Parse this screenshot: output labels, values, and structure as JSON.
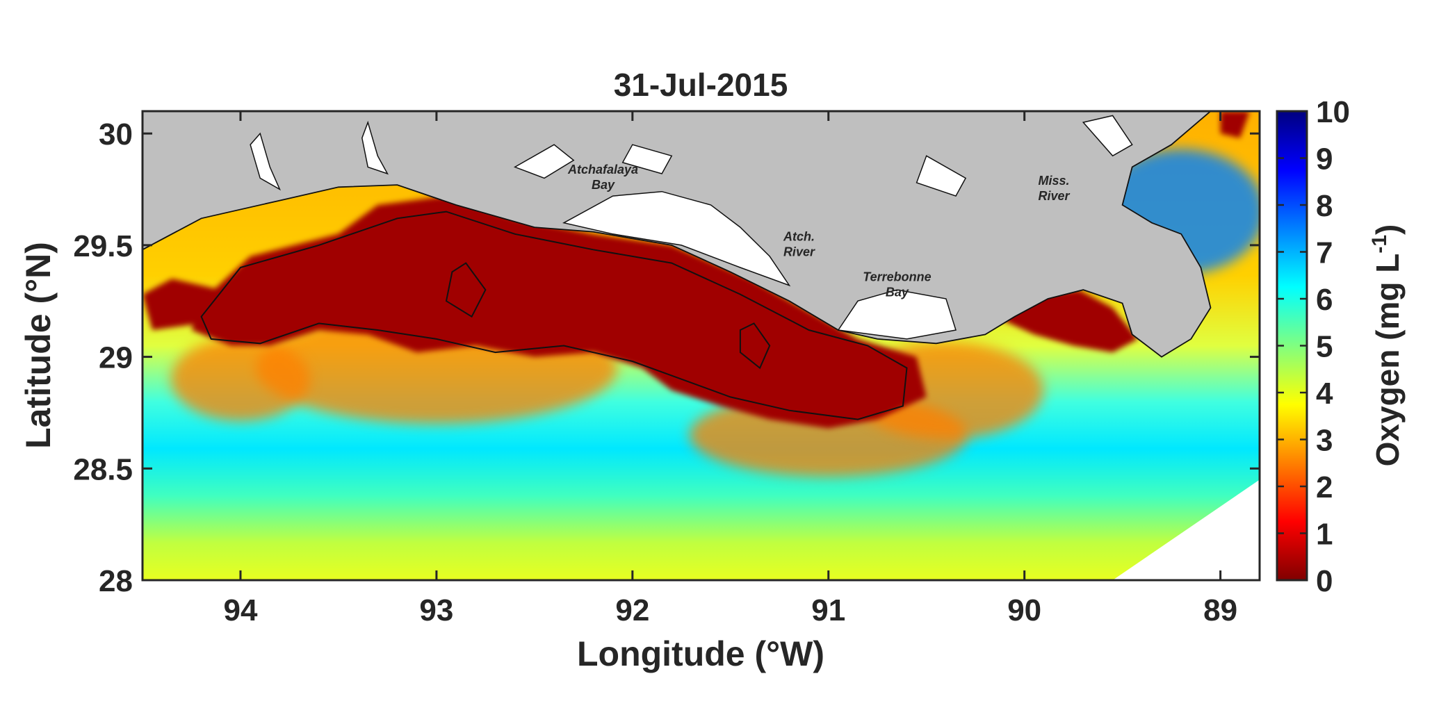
{
  "chart_data": {
    "type": "heatmap",
    "title": "31-Jul-2015",
    "xlabel": "Longitude (°W)",
    "ylabel": "Latitude (°N)",
    "xlim": [
      94.5,
      88.8
    ],
    "ylim": [
      28,
      30.1
    ],
    "x_ticks": [
      94,
      93,
      92,
      91,
      90,
      89
    ],
    "y_ticks": [
      28,
      28.5,
      29,
      29.5,
      30
    ],
    "x_tick_labels": [
      "94",
      "93",
      "92",
      "91",
      "90",
      "89"
    ],
    "y_tick_labels": [
      "28",
      "28.5",
      "29",
      "29.5",
      "30"
    ],
    "colorbar": {
      "label_main": "Oxygen (mg L",
      "label_sup": "-1",
      "label_end": ")",
      "range": [
        0,
        10
      ],
      "ticks": [
        0,
        1,
        2,
        3,
        4,
        5,
        6,
        7,
        8,
        9,
        10
      ],
      "tick_labels": [
        "0",
        "1",
        "2",
        "3",
        "4",
        "5",
        "6",
        "7",
        "8",
        "9",
        "10"
      ],
      "colormap": "jet",
      "colors": [
        "#800000",
        "#ff0000",
        "#ff8000",
        "#ffff00",
        "#80ff80",
        "#00ffff",
        "#0080ff",
        "#0000ff",
        "#000080"
      ]
    },
    "land_color": "#bfbfbf",
    "contour_level": 1,
    "annotations": [
      {
        "text_lines": [
          "Atchafalaya",
          "Bay"
        ],
        "lon": 92.15,
        "lat": 29.82
      },
      {
        "text_lines": [
          "Atch.",
          "River"
        ],
        "lon": 91.15,
        "lat": 29.52
      },
      {
        "text_lines": [
          "Terrebonne",
          "Bay"
        ],
        "lon": 90.65,
        "lat": 29.34
      },
      {
        "text_lines": [
          "Miss.",
          "River"
        ],
        "lon": 89.85,
        "lat": 29.77
      }
    ],
    "hypoxic_zones": [
      {
        "name": "core",
        "polygon": [
          [
            94.2,
            29.25
          ],
          [
            93.95,
            29.45
          ],
          [
            93.5,
            29.55
          ],
          [
            93.3,
            29.68
          ],
          [
            92.95,
            29.72
          ],
          [
            92.6,
            29.62
          ],
          [
            92.2,
            29.55
          ],
          [
            91.8,
            29.5
          ],
          [
            91.4,
            29.35
          ],
          [
            91.05,
            29.18
          ],
          [
            90.85,
            29.08
          ],
          [
            90.55,
            29.0
          ],
          [
            90.5,
            28.82
          ],
          [
            90.75,
            28.72
          ],
          [
            91.0,
            28.68
          ],
          [
            91.3,
            28.72
          ],
          [
            91.55,
            28.78
          ],
          [
            91.8,
            28.85
          ],
          [
            91.95,
            28.95
          ],
          [
            92.2,
            29.02
          ],
          [
            92.5,
            29.0
          ],
          [
            92.8,
            29.05
          ],
          [
            93.1,
            29.02
          ],
          [
            93.35,
            29.1
          ],
          [
            93.6,
            29.12
          ],
          [
            93.85,
            29.05
          ],
          [
            94.05,
            29.05
          ],
          [
            94.25,
            29.12
          ]
        ]
      },
      {
        "name": "west-edge",
        "polygon": [
          [
            94.5,
            29.28
          ],
          [
            94.35,
            29.35
          ],
          [
            94.1,
            29.3
          ],
          [
            94.2,
            29.15
          ],
          [
            94.45,
            29.12
          ]
        ]
      },
      {
        "name": "bird-foot",
        "polygon": [
          [
            90.15,
            29.18
          ],
          [
            89.95,
            29.28
          ],
          [
            89.72,
            29.3
          ],
          [
            89.55,
            29.22
          ],
          [
            89.42,
            29.08
          ],
          [
            89.55,
            29.02
          ],
          [
            89.75,
            29.05
          ],
          [
            89.95,
            29.1
          ]
        ]
      },
      {
        "name": "ne-corner",
        "polygon": [
          [
            89.0,
            30.1
          ],
          [
            88.85,
            30.1
          ],
          [
            88.9,
            29.98
          ],
          [
            89.0,
            30.0
          ]
        ]
      },
      {
        "name": "ms-sound-patch",
        "polygon": [
          [
            89.45,
            29.55
          ],
          [
            89.38,
            29.5
          ],
          [
            89.45,
            29.44
          ],
          [
            89.52,
            29.48
          ]
        ]
      }
    ],
    "contour_lines": [
      {
        "name": "main",
        "points": [
          [
            94.2,
            29.18
          ],
          [
            94.0,
            29.4
          ],
          [
            93.6,
            29.5
          ],
          [
            93.2,
            29.62
          ],
          [
            92.95,
            29.65
          ],
          [
            92.6,
            29.55
          ],
          [
            92.2,
            29.48
          ],
          [
            91.8,
            29.42
          ],
          [
            91.45,
            29.28
          ],
          [
            91.1,
            29.12
          ],
          [
            90.8,
            29.05
          ],
          [
            90.6,
            28.95
          ],
          [
            90.62,
            28.78
          ],
          [
            90.85,
            28.72
          ],
          [
            91.2,
            28.76
          ],
          [
            91.5,
            28.82
          ],
          [
            91.75,
            28.9
          ],
          [
            92.0,
            28.98
          ],
          [
            92.35,
            29.05
          ],
          [
            92.7,
            29.02
          ],
          [
            93.0,
            29.08
          ],
          [
            93.3,
            29.12
          ],
          [
            93.6,
            29.15
          ],
          [
            93.9,
            29.06
          ],
          [
            94.15,
            29.08
          ]
        ]
      },
      {
        "name": "blob1",
        "points": [
          [
            92.85,
            29.42
          ],
          [
            92.75,
            29.3
          ],
          [
            92.82,
            29.18
          ],
          [
            92.95,
            29.25
          ],
          [
            92.92,
            29.38
          ]
        ]
      },
      {
        "name": "blob2",
        "points": [
          [
            91.38,
            29.15
          ],
          [
            91.3,
            29.05
          ],
          [
            91.35,
            28.95
          ],
          [
            91.45,
            29.02
          ],
          [
            91.45,
            29.12
          ]
        ]
      }
    ],
    "land": [
      {
        "name": "mainland",
        "polygon": [
          [
            94.5,
            30.1
          ],
          [
            94.5,
            29.48
          ],
          [
            94.2,
            29.62
          ],
          [
            93.8,
            29.7
          ],
          [
            93.5,
            29.76
          ],
          [
            93.2,
            29.77
          ],
          [
            92.9,
            29.68
          ],
          [
            92.5,
            29.58
          ],
          [
            92.2,
            29.56
          ],
          [
            91.8,
            29.5
          ],
          [
            91.5,
            29.38
          ],
          [
            91.2,
            29.25
          ],
          [
            90.95,
            29.12
          ],
          [
            90.75,
            29.08
          ],
          [
            90.45,
            29.06
          ],
          [
            90.2,
            29.1
          ],
          [
            90.05,
            29.18
          ],
          [
            89.88,
            29.26
          ],
          [
            89.7,
            29.3
          ],
          [
            89.5,
            29.24
          ],
          [
            89.45,
            29.1
          ],
          [
            89.3,
            29.0
          ],
          [
            89.15,
            29.08
          ],
          [
            89.05,
            29.22
          ],
          [
            89.1,
            29.4
          ],
          [
            89.2,
            29.55
          ],
          [
            89.35,
            29.6
          ],
          [
            89.5,
            29.68
          ],
          [
            89.45,
            29.85
          ],
          [
            89.25,
            29.95
          ],
          [
            89.05,
            30.1
          ]
        ]
      }
    ],
    "water_in_land": [
      {
        "name": "atchafalaya-bay",
        "polygon": [
          [
            92.35,
            29.6
          ],
          [
            92.1,
            29.72
          ],
          [
            91.85,
            29.74
          ],
          [
            91.6,
            29.68
          ],
          [
            91.45,
            29.58
          ],
          [
            91.3,
            29.45
          ],
          [
            91.2,
            29.32
          ],
          [
            91.45,
            29.4
          ],
          [
            91.75,
            29.5
          ],
          [
            92.1,
            29.55
          ]
        ]
      },
      {
        "name": "terrebonne-bay",
        "polygon": [
          [
            90.95,
            29.12
          ],
          [
            90.85,
            29.25
          ],
          [
            90.65,
            29.3
          ],
          [
            90.4,
            29.26
          ],
          [
            90.35,
            29.12
          ],
          [
            90.6,
            29.08
          ]
        ]
      },
      {
        "name": "calcasieu-lake",
        "polygon": [
          [
            93.35,
            30.05
          ],
          [
            93.3,
            29.9
          ],
          [
            93.25,
            29.82
          ],
          [
            93.35,
            29.85
          ],
          [
            93.38,
            29.98
          ]
        ]
      },
      {
        "name": "sabine-lake",
        "polygon": [
          [
            93.9,
            30.0
          ],
          [
            93.85,
            29.85
          ],
          [
            93.8,
            29.75
          ],
          [
            93.9,
            29.8
          ],
          [
            93.95,
            29.95
          ]
        ]
      },
      {
        "name": "white-lake",
        "polygon": [
          [
            92.6,
            29.85
          ],
          [
            92.4,
            29.95
          ],
          [
            92.3,
            29.88
          ],
          [
            92.45,
            29.8
          ]
        ]
      },
      {
        "name": "grand-lake",
        "polygon": [
          [
            92.0,
            29.95
          ],
          [
            91.8,
            29.9
          ],
          [
            91.85,
            29.82
          ],
          [
            92.05,
            29.87
          ]
        ]
      },
      {
        "name": "lake-salvador",
        "polygon": [
          [
            90.5,
            29.9
          ],
          [
            90.3,
            29.8
          ],
          [
            90.35,
            29.72
          ],
          [
            90.55,
            29.78
          ]
        ]
      },
      {
        "name": "lake-borgne",
        "polygon": [
          [
            89.7,
            30.05
          ],
          [
            89.55,
            29.9
          ],
          [
            89.45,
            29.95
          ],
          [
            89.55,
            30.08
          ]
        ]
      }
    ]
  }
}
